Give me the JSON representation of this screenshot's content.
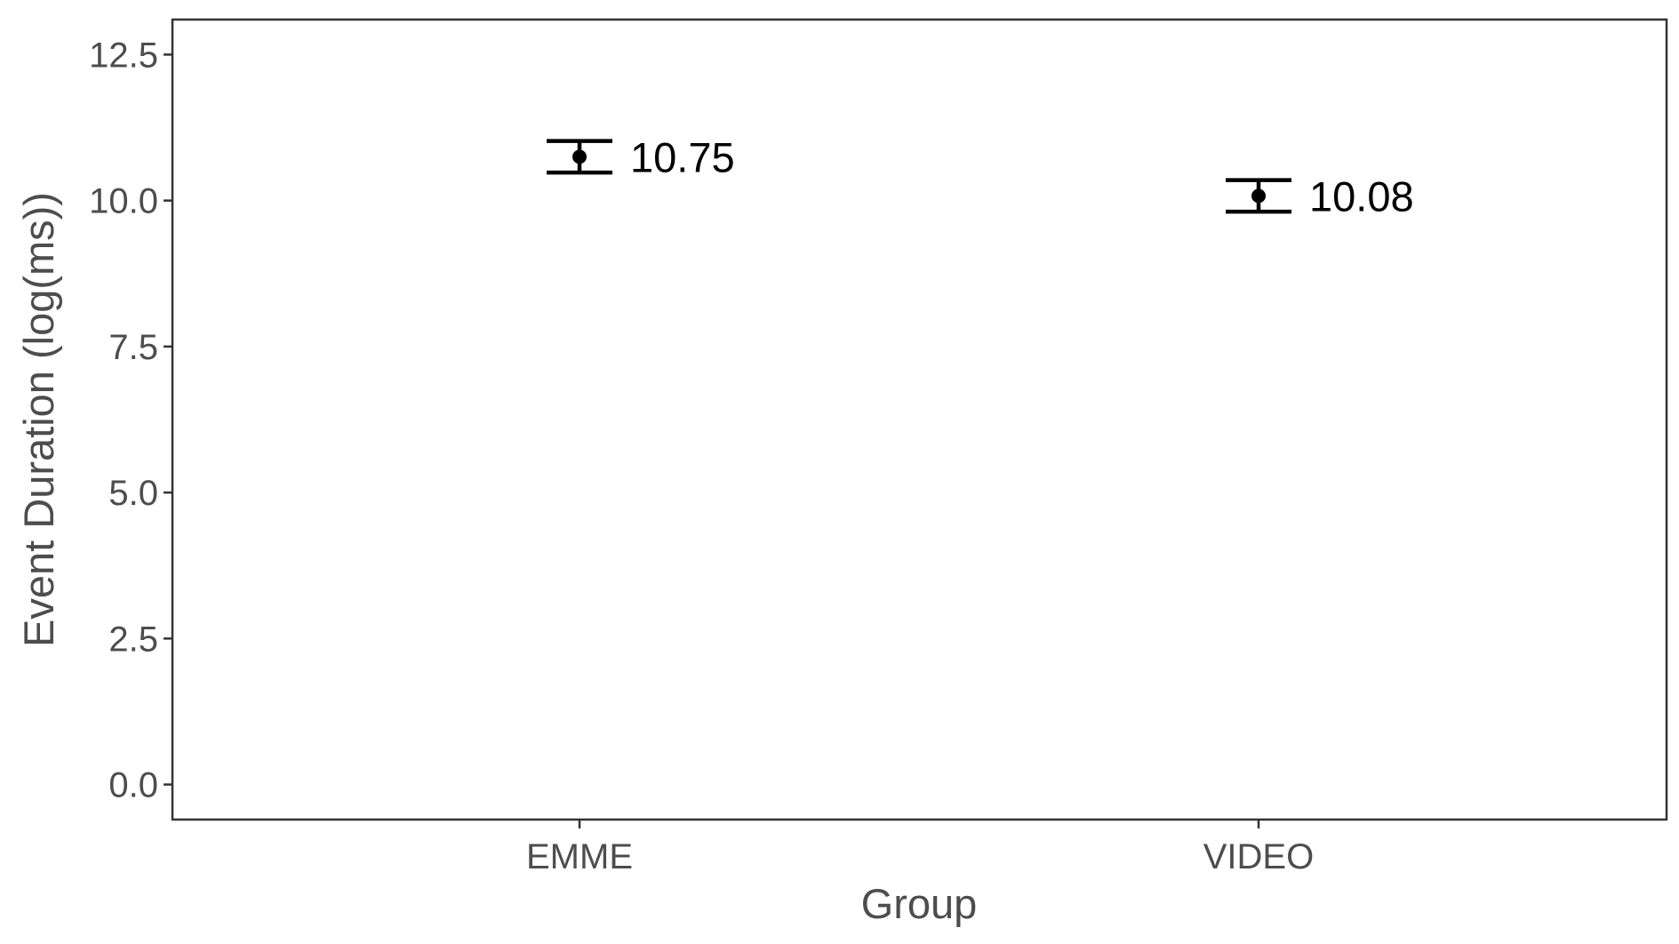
{
  "chart_data": {
    "type": "scatter",
    "title": "",
    "xlabel": "Group",
    "ylabel": "Event Duration (log(ms))",
    "categories": [
      "EMME",
      "VIDEO"
    ],
    "values": [
      10.75,
      10.08
    ],
    "error_bars": [
      {
        "low": 10.48,
        "high": 11.02
      },
      {
        "low": 9.81,
        "high": 10.35
      }
    ],
    "data_labels": [
      "10.75",
      "10.08"
    ],
    "ylim": [
      -0.6,
      13.1
    ],
    "yticks": [
      0.0,
      2.5,
      5.0,
      7.5,
      10.0,
      12.5
    ],
    "ytick_labels": [
      "0.0",
      "2.5",
      "5.0",
      "7.5",
      "10.0",
      "12.5"
    ],
    "grid": false,
    "legend": "none",
    "colors": {
      "points": "#000000",
      "axis_text": "#4d4d4d",
      "panel_border": "#333333"
    }
  }
}
